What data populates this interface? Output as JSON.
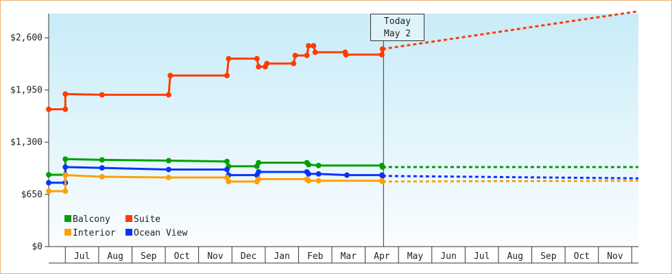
{
  "chart_data": {
    "type": "line",
    "yticks": [
      "$0",
      "$650",
      "$1,300",
      "$1,950",
      "$2,600"
    ],
    "ylim": [
      0,
      2900
    ],
    "xticks": [
      "Jul",
      "Aug",
      "Sep",
      "Oct",
      "Nov",
      "Dec",
      "Jan",
      "Feb",
      "Mar",
      "Apr",
      "May",
      "Jun",
      "Jul",
      "Aug",
      "Sep",
      "Oct",
      "Nov"
    ],
    "x_unit": "months since start of Jun (0 = start of Jun, 17.7 = late Nov of following year)",
    "xlim": [
      0,
      17.7
    ],
    "today": {
      "line1": "Today",
      "line2": "May 2",
      "x": 10.05
    },
    "series": [
      {
        "name": "Suite",
        "color": "#ff3b00",
        "points": [
          [
            0,
            1710
          ],
          [
            0.5,
            1710
          ],
          [
            0.5,
            1900
          ],
          [
            1.6,
            1890
          ],
          [
            3.6,
            1890
          ],
          [
            3.65,
            2130
          ],
          [
            5.35,
            2130
          ],
          [
            5.4,
            2340
          ],
          [
            6.25,
            2340
          ],
          [
            6.3,
            2240
          ],
          [
            6.5,
            2240
          ],
          [
            6.55,
            2280
          ],
          [
            7.35,
            2280
          ],
          [
            7.4,
            2380
          ],
          [
            7.75,
            2380
          ],
          [
            7.8,
            2500
          ],
          [
            7.95,
            2500
          ],
          [
            8.0,
            2420
          ],
          [
            8.9,
            2420
          ],
          [
            8.92,
            2390
          ],
          [
            10.0,
            2390
          ],
          [
            10.02,
            2460
          ]
        ],
        "forecast": [
          [
            10.02,
            2460
          ],
          [
            17.7,
            2930
          ]
        ]
      },
      {
        "name": "Balcony",
        "color": "#00a000",
        "points": [
          [
            0,
            895
          ],
          [
            0.5,
            895
          ],
          [
            0.5,
            1090
          ],
          [
            1.6,
            1080
          ],
          [
            3.6,
            1070
          ],
          [
            5.35,
            1060
          ],
          [
            5.4,
            1000
          ],
          [
            6.25,
            1000
          ],
          [
            6.3,
            1045
          ],
          [
            7.75,
            1045
          ],
          [
            7.8,
            1020
          ],
          [
            8.1,
            1010
          ],
          [
            10.0,
            1010
          ],
          [
            10.02,
            990
          ]
        ],
        "forecast": [
          [
            10.02,
            990
          ],
          [
            17.7,
            990
          ]
        ]
      },
      {
        "name": "Ocean View",
        "color": "#0a32ff",
        "points": [
          [
            0,
            795
          ],
          [
            0.5,
            795
          ],
          [
            0.5,
            990
          ],
          [
            1.6,
            980
          ],
          [
            3.6,
            960
          ],
          [
            5.35,
            960
          ],
          [
            5.4,
            890
          ],
          [
            6.25,
            890
          ],
          [
            6.3,
            930
          ],
          [
            7.75,
            930
          ],
          [
            7.8,
            905
          ],
          [
            8.1,
            905
          ],
          [
            8.95,
            890
          ],
          [
            10.0,
            890
          ],
          [
            10.02,
            880
          ]
        ],
        "forecast": [
          [
            10.02,
            880
          ],
          [
            17.7,
            850
          ]
        ]
      },
      {
        "name": "Interior",
        "color": "#ffa000",
        "points": [
          [
            0,
            690
          ],
          [
            0.5,
            690
          ],
          [
            0.5,
            890
          ],
          [
            1.6,
            870
          ],
          [
            3.6,
            860
          ],
          [
            5.35,
            860
          ],
          [
            5.4,
            810
          ],
          [
            6.25,
            810
          ],
          [
            6.3,
            840
          ],
          [
            7.75,
            840
          ],
          [
            7.8,
            820
          ],
          [
            8.1,
            820
          ],
          [
            10.0,
            820
          ],
          [
            10.02,
            810
          ]
        ],
        "forecast": [
          [
            10.02,
            810
          ],
          [
            17.7,
            820
          ]
        ]
      }
    ],
    "legend": [
      {
        "label": "Balcony",
        "color": "#00a000"
      },
      {
        "label": "Suite",
        "color": "#ff3b00"
      },
      {
        "label": "Interior",
        "color": "#ffa000"
      },
      {
        "label": "Ocean View",
        "color": "#0a32ff"
      }
    ],
    "legend_position": "bottom-left",
    "background_gradient": [
      "#c8ecf8",
      "#fafdff"
    ]
  }
}
